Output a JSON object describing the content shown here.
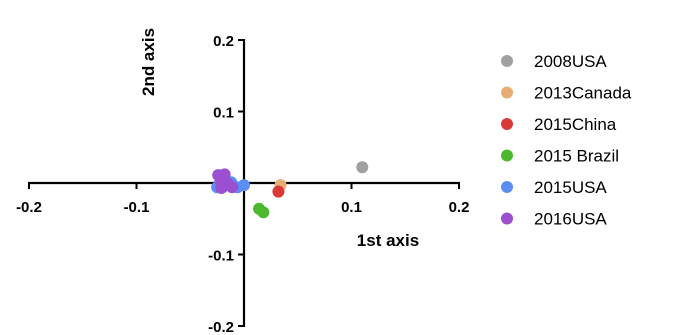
{
  "chart_data": {
    "type": "scatter",
    "title": "",
    "xlabel": "1st axis",
    "ylabel": "2nd axis",
    "xlim": [
      -0.2,
      0.2
    ],
    "ylim": [
      -0.2,
      0.2
    ],
    "x_ticks": [
      -0.2,
      -0.1,
      0.1,
      0.2
    ],
    "y_ticks": [
      0.2,
      0.1,
      -0.1,
      -0.2
    ],
    "x_tick_labels": [
      "-0.2",
      "-0.1",
      "0.1",
      "0.2"
    ],
    "y_tick_labels": [
      "0.2",
      "0.1",
      "-0.1",
      "-0.2"
    ],
    "grid": false,
    "legend_position": "right",
    "series": [
      {
        "name": "2008USA",
        "color": "#a0a0a0",
        "points": [
          [
            0.11,
            0.022
          ]
        ]
      },
      {
        "name": "2013Canada",
        "color": "#e8ad74",
        "points": [
          [
            0.034,
            -0.003
          ]
        ]
      },
      {
        "name": "2015China",
        "color": "#d83a3a",
        "points": [
          [
            0.032,
            -0.012
          ]
        ]
      },
      {
        "name": "2015 Brazil",
        "color": "#4cb82e",
        "points": [
          [
            0.014,
            -0.036
          ],
          [
            0.018,
            -0.041
          ]
        ]
      },
      {
        "name": "2015USA",
        "color": "#5b8ef2",
        "points": [
          [
            -0.025,
            -0.006
          ],
          [
            -0.018,
            -0.004
          ],
          [
            -0.012,
            0.001
          ],
          [
            -0.006,
            -0.006
          ],
          [
            0.0,
            -0.003
          ]
        ]
      },
      {
        "name": "2016USA",
        "color": "#9b4fd1",
        "points": [
          [
            -0.024,
            0.011
          ],
          [
            -0.018,
            0.012
          ],
          [
            -0.022,
            0.003
          ],
          [
            -0.015,
            -0.001
          ],
          [
            -0.021,
            -0.007
          ],
          [
            -0.011,
            -0.006
          ]
        ]
      }
    ]
  }
}
